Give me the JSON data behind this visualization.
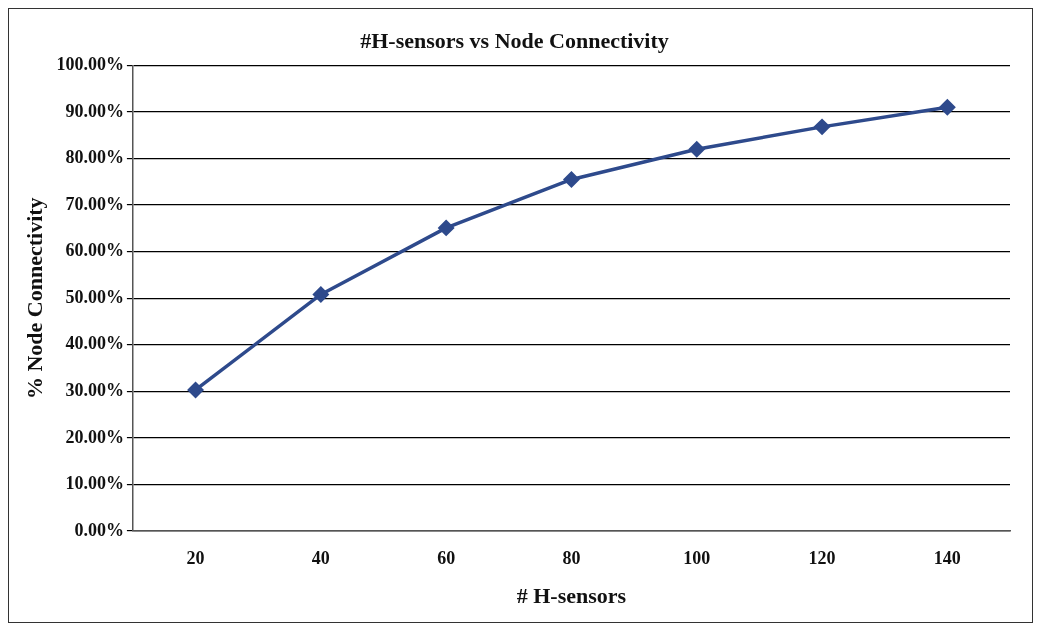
{
  "chart_data": {
    "type": "line",
    "title": "#H-sensors vs Node Connectivity",
    "xlabel": "# H-sensors",
    "ylabel": "% Node Connectivity",
    "categories": [
      "20",
      "40",
      "60",
      "80",
      "100",
      "120",
      "140"
    ],
    "series": [
      {
        "color": "#2e4a8c",
        "values": [
          30.3,
          50.8,
          65.1,
          75.5,
          82.0,
          86.8,
          91.0
        ]
      }
    ],
    "ylim": [
      0,
      100
    ],
    "yticks": [
      {
        "value": 0,
        "label": "0.00%"
      },
      {
        "value": 10,
        "label": "10.00%"
      },
      {
        "value": 20,
        "label": "20.00%"
      },
      {
        "value": 30,
        "label": "30.00%"
      },
      {
        "value": 40,
        "label": "40.00%"
      },
      {
        "value": 50,
        "label": "50.00%"
      },
      {
        "value": 60,
        "label": "60.00%"
      },
      {
        "value": 70,
        "label": "70.00%"
      },
      {
        "value": 80,
        "label": "80.00%"
      },
      {
        "value": 90,
        "label": "90.00%"
      },
      {
        "value": 100,
        "label": "100.00%"
      }
    ],
    "grid": "y",
    "legend": false,
    "marker": "diamond",
    "line_style": "solid"
  }
}
